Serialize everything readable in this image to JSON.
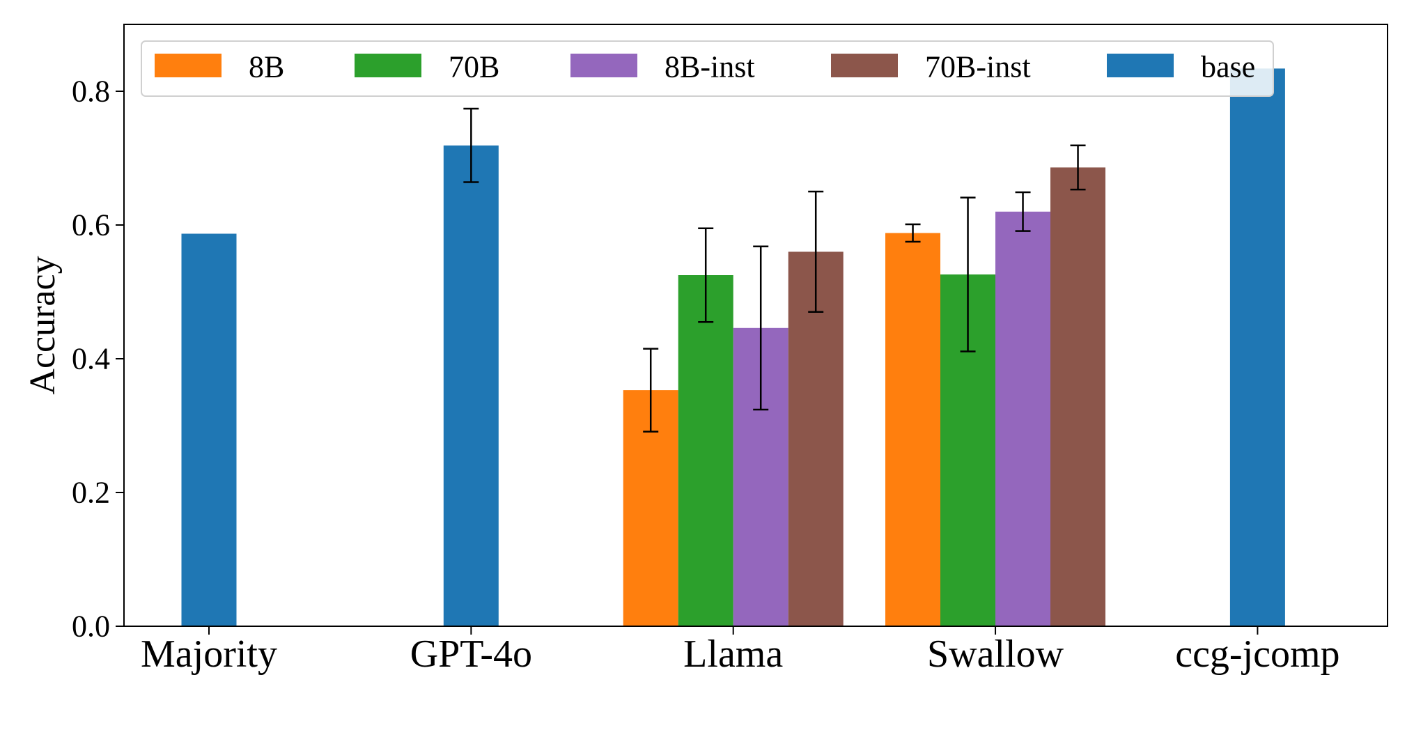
{
  "chart_data": {
    "type": "bar",
    "title": "",
    "xlabel": "",
    "ylabel": "Accuracy",
    "ylim": [
      0,
      0.9
    ],
    "yticks": [
      "0.0",
      "0.2",
      "0.4",
      "0.6",
      "0.8"
    ],
    "grid": false,
    "legend_position": "top",
    "categories": [
      "Majority",
      "GPT-4o",
      "Llama",
      "Swallow",
      "ccg-jcomp"
    ],
    "series": [
      {
        "name": "8B",
        "color": "#ff7f0e",
        "values": [
          null,
          null,
          0.353,
          0.588,
          null
        ],
        "errors": [
          null,
          null,
          0.062,
          0.013,
          null
        ]
      },
      {
        "name": "70B",
        "color": "#2ca02c",
        "values": [
          null,
          null,
          0.525,
          0.526,
          null
        ],
        "errors": [
          null,
          null,
          0.07,
          0.115,
          null
        ]
      },
      {
        "name": "8B-inst",
        "color": "#9467bd",
        "values": [
          null,
          null,
          0.446,
          0.62,
          null
        ],
        "errors": [
          null,
          null,
          0.122,
          0.029,
          null
        ]
      },
      {
        "name": "70B-inst",
        "color": "#8c564b",
        "values": [
          null,
          null,
          0.56,
          0.686,
          null
        ],
        "errors": [
          null,
          null,
          0.09,
          0.033,
          null
        ]
      },
      {
        "name": "base",
        "color": "#1f77b4",
        "values": [
          0.587,
          0.719,
          null,
          null,
          0.834
        ],
        "errors": [
          null,
          0.055,
          null,
          null,
          null
        ]
      }
    ]
  }
}
